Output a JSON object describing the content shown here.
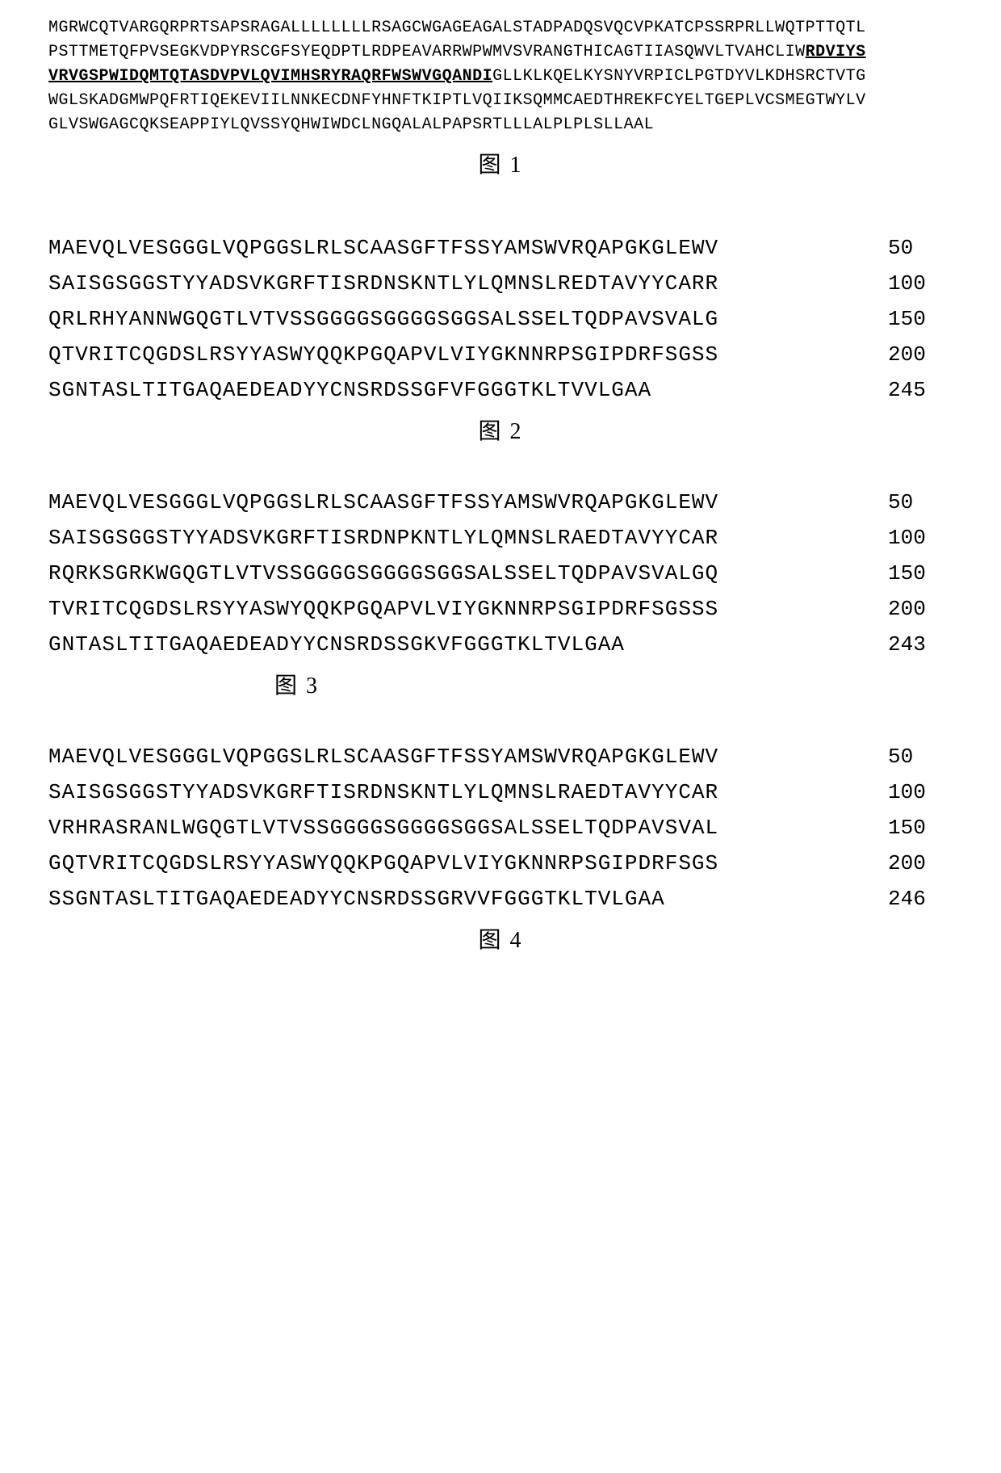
{
  "fig1": {
    "lines": [
      {
        "plain": "MGRWCQTVARGQRPRTSAPSRAGALLLLLLLLRSAGCWGAGEAGALSTADPADQSVQCVPKATCPSSRPRLLWQTPTTQTL",
        "bold": ""
      },
      {
        "plain": "PSTTMETQFPVSEGKVDPYRSCGFSYEQDPTLRDPEAVARRWPWMVSVRANGTHICAGTIIASQWVLTVAHCLIW",
        "bold": "RDVIYS"
      },
      {
        "plain": "",
        "bold": "VRVGSPWIDQMTQTASDVPVLQVIMHSRYRAQRFWSWVGQANDI",
        "after": "GLLKLKQELKYSNYVRPICLPGTDYVLKDHSRCTVTG"
      },
      {
        "plain": "WGLSKADGMWPQFRTIQEKEVIILNNKECDNFYHNFTKIPTLVQIIKSQMMCAEDTHREKFCYELTGEPLVCSMEGTWYLV",
        "bold": ""
      },
      {
        "plain": "GLVSWGAGCQKSEAPPIYLQVSSYQHWIWDCLNGQALALPAPSRTLLLALPLPLSLLAAL",
        "bold": ""
      }
    ],
    "label": "图 1"
  },
  "fig2": {
    "rows": [
      {
        "seq": "MAEVQLVESGGGLVQPGGSLRLSCAASGFTFSSYAMSWVRQAPGKGLEWV",
        "num": "50"
      },
      {
        "seq": "SAISGSGGSTYYADSVKGRFTISRDNSKNTLYLQMNSLREDTAVYYCARR",
        "num": "100"
      },
      {
        "seq": "QRLRHYANNWGQGTLVTVSSGGGGSGGGGSGGSALSSELTQDPAVSVALG",
        "num": "150"
      },
      {
        "seq": "QTVRITCQGDSLRSYYASWYQQKPGQAPVLVIYGKNNRPSGIPDRFSGSS",
        "num": "200"
      },
      {
        "seq": "SGNTASLTITGAQAEDEADYYCNSRDSSGFVFGGGTKLTVVLGAA",
        "num": "245"
      }
    ],
    "label": "图 2"
  },
  "fig3": {
    "rows": [
      {
        "seq": "MAEVQLVESGGGLVQPGGSLRLSCAASGFTFSSYAMSWVRQAPGKGLEWV",
        "num": "50"
      },
      {
        "seq": "SAISGSGGSTYYADSVKGRFTISRDNPKNTLYLQMNSLRAEDTAVYYCAR",
        "num": "100"
      },
      {
        "seq": "RQRKSGRKWGQGTLVTVSSGGGGSGGGGSGGSALSSELTQDPAVSVALGQ",
        "num": "150"
      },
      {
        "seq": "TVRITCQGDSLRSYYASWYQQKPGQAPVLVIYGKNNRPSGIPDRFSGSSS",
        "num": "200"
      },
      {
        "seq": "GNTASLTITGAQAEDEADYYCNSRDSSGKVFGGGTKLTVLGAA",
        "num": "243"
      }
    ],
    "label": "图 3"
  },
  "fig4": {
    "rows": [
      {
        "seq": "MAEVQLVESGGGLVQPGGSLRLSCAASGFTFSSYAMSWVRQAPGKGLEWV",
        "num": "50"
      },
      {
        "seq": "SAISGSGGSTYYADSVKGRFTISRDNSKNTLYLQMNSLRAEDTAVYYCAR",
        "num": "100"
      },
      {
        "seq": "VRHRASRANLWGQGTLVTVSSGGGGSGGGGSGGSALSSELTQDPAVSVAL",
        "num": "150"
      },
      {
        "seq": "GQTVRITCQGDSLRSYYASWYQQKPGQAPVLVIYGKNNRPSGIPDRFSGS",
        "num": "200"
      },
      {
        "seq": "SSGNTASLTITGAQAEDEADYYCNSRDSSGRVVFGGGTKLTVLGAA",
        "num": "246"
      }
    ],
    "label": "图 4"
  }
}
